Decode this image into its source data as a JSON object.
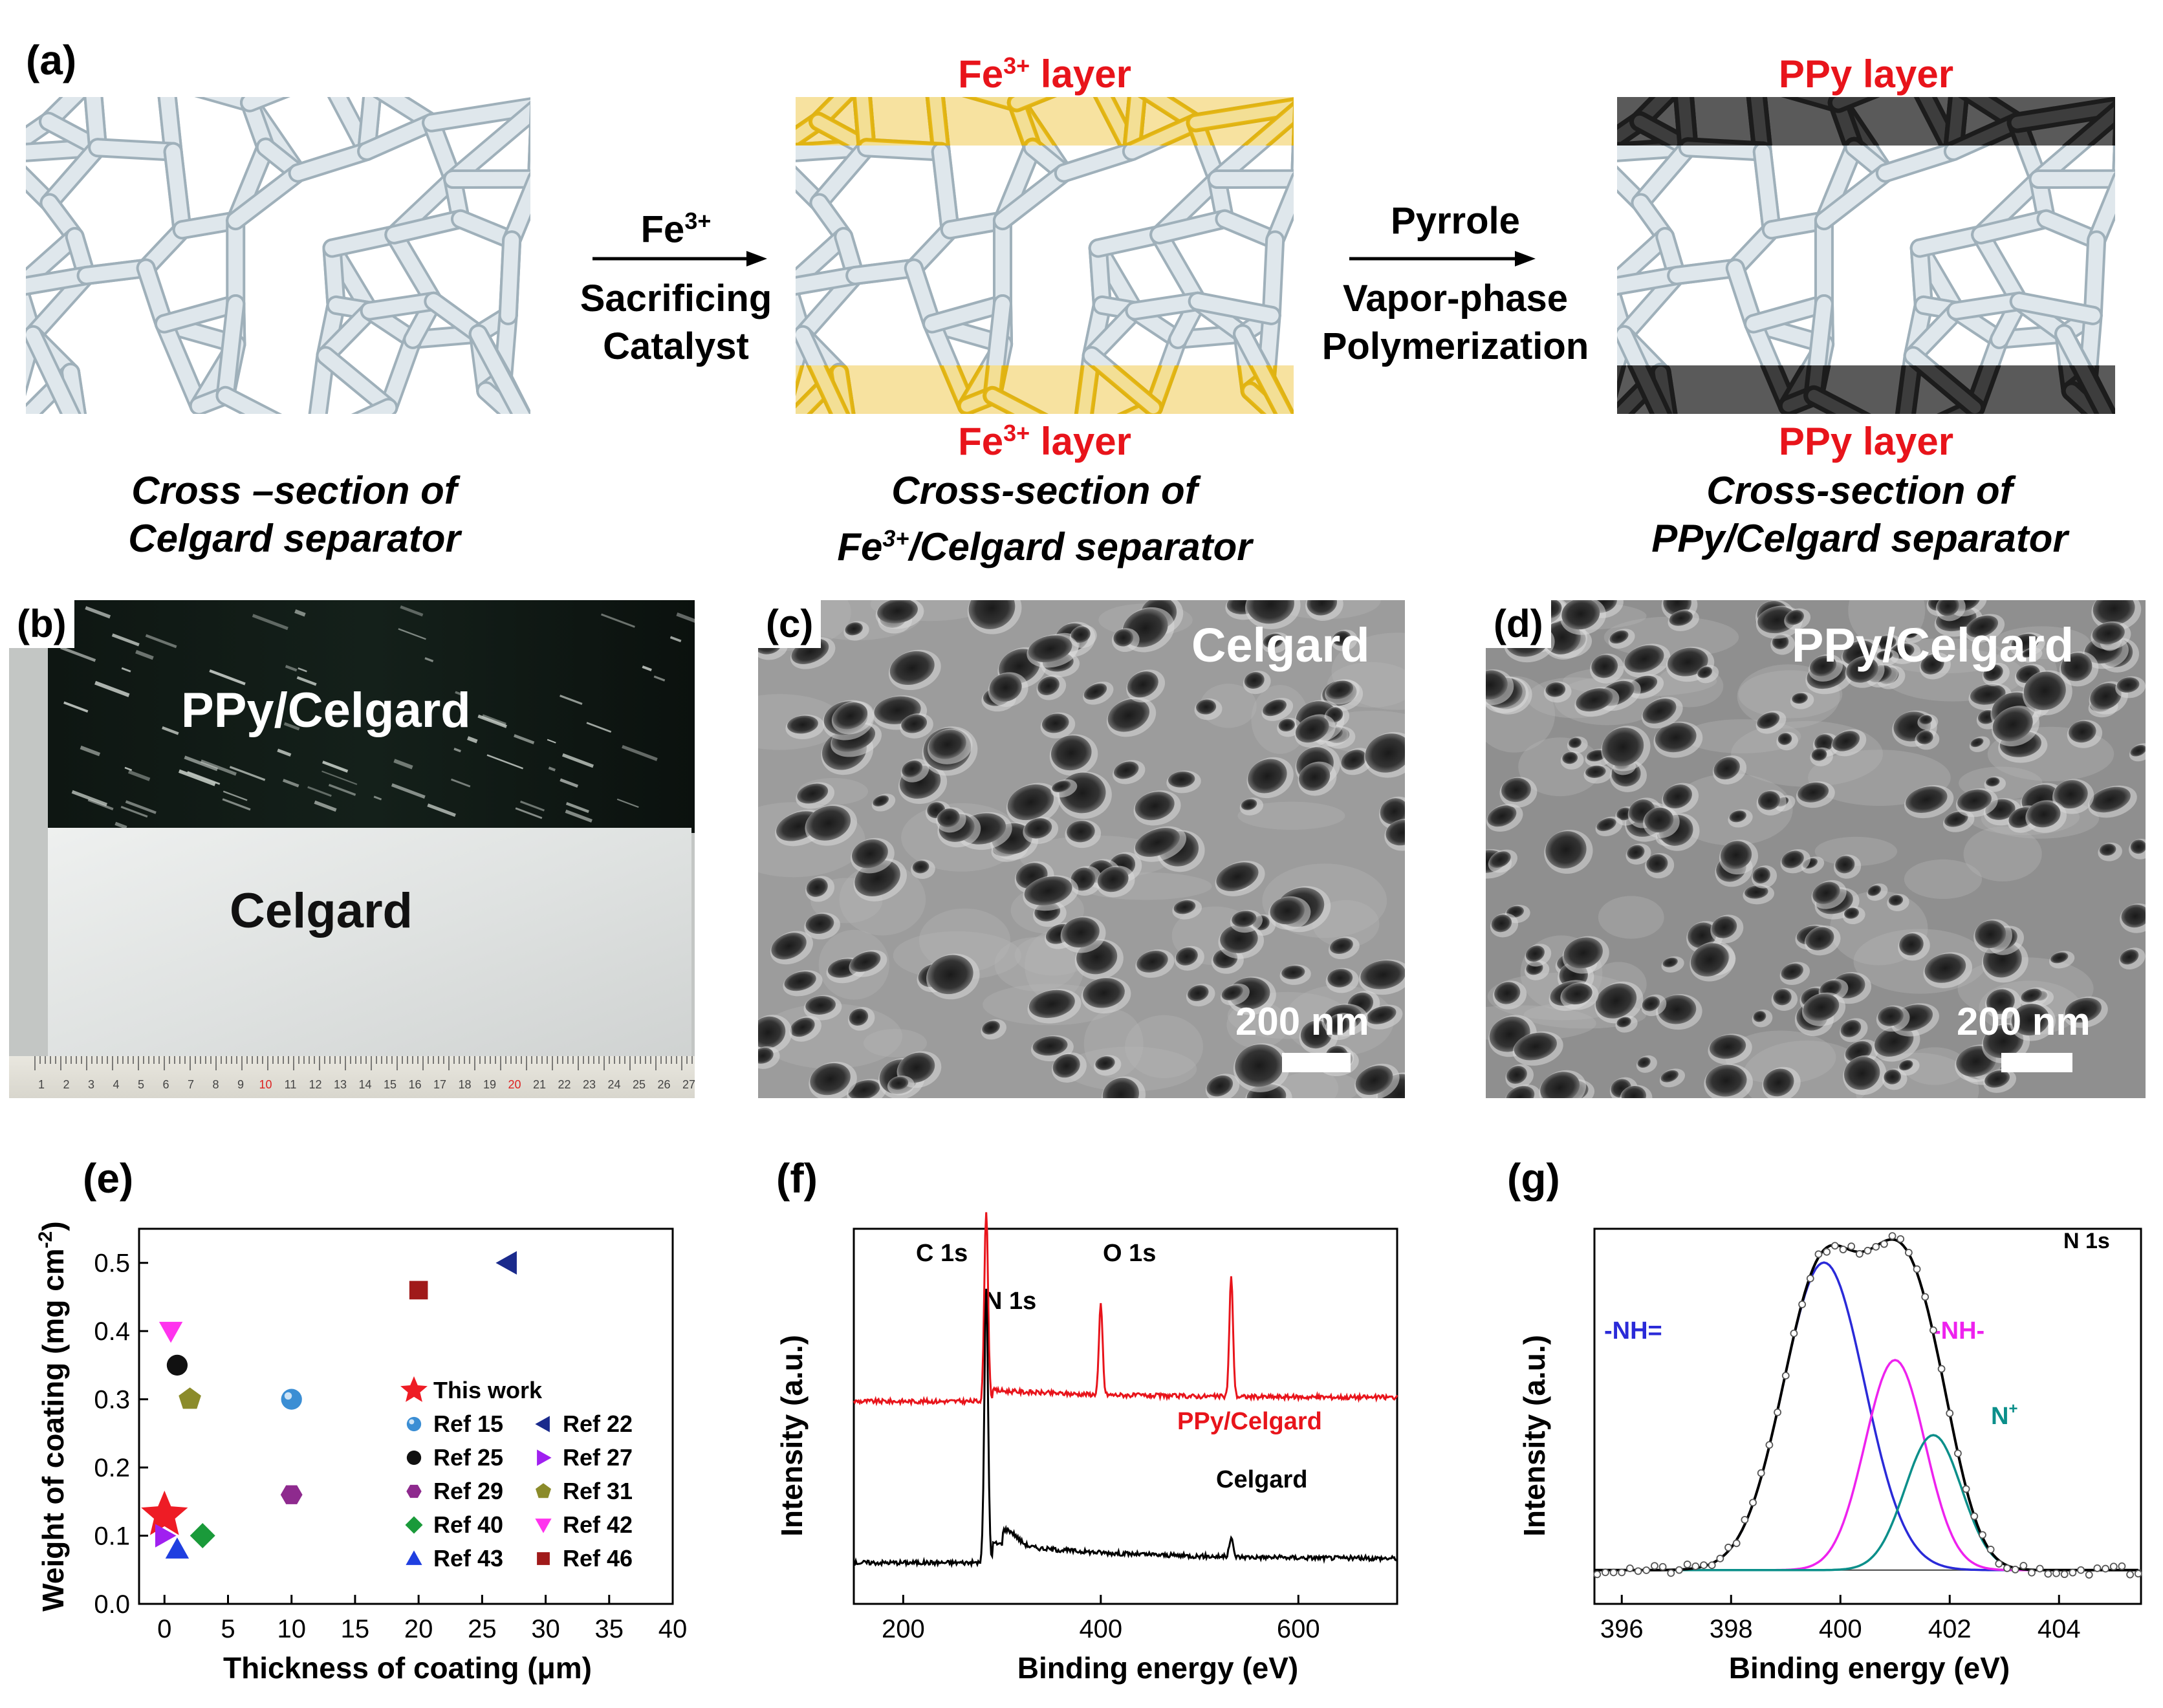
{
  "panel_a": {
    "label": "(a)",
    "step1": {
      "line1": "Cross –section of",
      "line2": "Celgard separator"
    },
    "arrow1": {
      "reagent_base": "Fe",
      "reagent_sup": "3+",
      "line2": "Sacrificing",
      "line3": "Catalyst"
    },
    "step2": {
      "top_layer_base": "Fe",
      "top_layer_sup": "3+",
      "top_layer_rest": " layer",
      "bottom_layer_base": "Fe",
      "bottom_layer_sup": "3+",
      "bottom_layer_rest": " layer",
      "line1": "Cross-section of",
      "line2_base": "Fe",
      "line2_sup": "3+",
      "line2_rest": "/Celgard separator"
    },
    "arrow2": {
      "line1": "Pyrrole",
      "line2": "Vapor-phase",
      "line3": "Polymerization"
    },
    "step3": {
      "top_layer": "PPy layer",
      "bottom_layer": "PPy layer",
      "line1": "Cross-section  of",
      "line2": "PPy/Celgard separator"
    },
    "colors": {
      "fiber": "#cfd8de",
      "fe_layer": "#f3c21b",
      "ppy_layer": "#3a3a3a"
    }
  },
  "panel_b": {
    "label": "(b)",
    "top_text": "PPy/Celgard",
    "bottom_text": "Celgard",
    "ruler_numbers": [
      "1",
      "2",
      "3",
      "4",
      "5",
      "6",
      "7",
      "8",
      "9",
      "10",
      "11",
      "12",
      "13",
      "14",
      "15",
      "16",
      "17",
      "18",
      "19",
      "20",
      "21",
      "22",
      "23",
      "24",
      "25",
      "26",
      "27"
    ]
  },
  "panel_c": {
    "label": "(c)",
    "title": "Celgard",
    "scale": "200 nm"
  },
  "panel_d": {
    "label": "(d)",
    "title": "PPy/Celgard",
    "scale": "200 nm"
  },
  "panel_e": {
    "label": "(e)"
  },
  "panel_f": {
    "label": "(f)"
  },
  "panel_g": {
    "label": "(g)"
  },
  "chart_data": [
    {
      "panel": "e",
      "type": "scatter",
      "xlabel": "Thickness of coating (μm)",
      "ylabel_base": "Weight of coating (mg cm",
      "ylabel_sup": "-2",
      "ylabel_end": ")",
      "xlim": [
        -2,
        40
      ],
      "ylim": [
        0,
        0.55
      ],
      "xticks": [
        "0",
        "5",
        "10",
        "15",
        "20",
        "25",
        "30",
        "35",
        "40"
      ],
      "yticks": [
        "0.0",
        "0.1",
        "0.2",
        "0.3",
        "0.4",
        "0.5"
      ],
      "legend_placement": "bottom-right",
      "series": [
        {
          "name": "This work",
          "marker": "star",
          "color": "#ee1c25",
          "x": 0,
          "y": 0.13
        },
        {
          "name": "Ref 15",
          "marker": "sphere",
          "color": "#3b8ed4",
          "x": 10,
          "y": 0.3
        },
        {
          "name": "Ref 22",
          "marker": "tri-left",
          "color": "#1a2a8c",
          "x": 27,
          "y": 0.5
        },
        {
          "name": "Ref 25",
          "marker": "circle",
          "color": "#111111",
          "x": 1,
          "y": 0.35
        },
        {
          "name": "Ref 27",
          "marker": "tri-right",
          "color": "#a020f0",
          "x": 0,
          "y": 0.1
        },
        {
          "name": "Ref 29",
          "marker": "hexagon",
          "color": "#8e2a8e",
          "x": 10,
          "y": 0.16
        },
        {
          "name": "Ref 31",
          "marker": "pentagon",
          "color": "#8b8b2a",
          "x": 2,
          "y": 0.3
        },
        {
          "name": "Ref 40",
          "marker": "diamond",
          "color": "#1a9a3a",
          "x": 3,
          "y": 0.1
        },
        {
          "name": "Ref 42",
          "marker": "tri-down",
          "color": "#ff33ee",
          "x": 0.5,
          "y": 0.4
        },
        {
          "name": "Ref 43",
          "marker": "tri-up",
          "color": "#1f3fe0",
          "x": 1,
          "y": 0.08
        },
        {
          "name": "Ref 46",
          "marker": "square",
          "color": "#a01a1a",
          "x": 20,
          "y": 0.46
        }
      ]
    },
    {
      "panel": "f",
      "type": "line",
      "xlabel": "Binding energy (eV)",
      "ylabel": "Intensity (a.u.)",
      "xlim": [
        150,
        700
      ],
      "xticks": [
        "200",
        "400",
        "600"
      ],
      "annotations": [
        "C 1s",
        "N 1s",
        "O 1s"
      ],
      "series": [
        {
          "name": "PPy/Celgard",
          "color": "#e8141b",
          "baseline": 0.55,
          "peaks": [
            {
              "x": 284,
              "h": 0.5
            },
            {
              "x": 400,
              "h": 0.24
            },
            {
              "x": 532,
              "h": 0.32
            }
          ]
        },
        {
          "name": "Celgard",
          "color": "#000000",
          "baseline": 0.12,
          "peaks": [
            {
              "x": 284,
              "h": 0.72
            },
            {
              "x": 532,
              "h": 0.05
            }
          ]
        }
      ]
    },
    {
      "panel": "g",
      "type": "line",
      "xlabel": "Binding energy (eV)",
      "ylabel": "Intensity (a.u.)",
      "title": "N 1s",
      "xlim": [
        395.5,
        405.5
      ],
      "xticks": [
        "396",
        "398",
        "400",
        "402",
        "404"
      ],
      "series": [
        {
          "name": "-NH=",
          "color": "#2a2ad8",
          "center": 399.7,
          "height": 0.82,
          "width": 1.15
        },
        {
          "name": "-NH-",
          "color": "#ee22ee",
          "center": 401.0,
          "height": 0.56,
          "width": 0.85
        },
        {
          "name": "N⁺",
          "color": "#0b8f8a",
          "center": 401.7,
          "height": 0.36,
          "width": 0.8
        }
      ],
      "series_labels": {
        "nh_eq": "-NH=",
        "nh": "-NH-",
        "nplus_base": "N",
        "nplus_sup": "+"
      }
    }
  ]
}
